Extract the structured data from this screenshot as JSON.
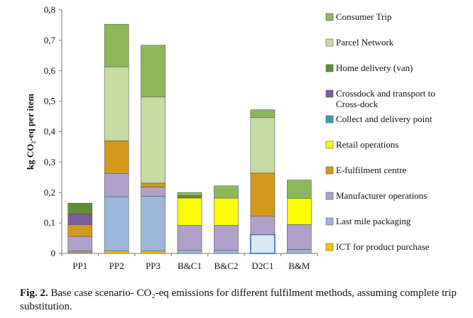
{
  "chart_data": {
    "type": "bar",
    "stacked": true,
    "ylabel": "kg CO₂-eq per item",
    "ylim": [
      0,
      0.8
    ],
    "y_ticks": [
      "0",
      "0,1",
      "0,2",
      "0,3",
      "0,4",
      "0,5",
      "0,6",
      "0,7",
      "0,8"
    ],
    "y_tick_values": [
      0,
      0.1,
      0.2,
      0.3,
      0.4,
      0.5,
      0.6,
      0.7,
      0.8
    ],
    "grid": false,
    "legend_position": "right",
    "categories": [
      "PP1",
      "PP2",
      "PP3",
      "B&C1",
      "B&C2",
      "D2C1",
      "B&M"
    ],
    "series": [
      {
        "name": "ICT for product purchase",
        "color": "#f5c400",
        "values": [
          0.003,
          0.008,
          0.008,
          0.0,
          0.0,
          0.0,
          0.0
        ]
      },
      {
        "name": "Last mile packaging",
        "color": "#9bb7db",
        "values": [
          0.005,
          0.178,
          0.18,
          0.01,
          0.01,
          0.062,
          0.013
        ]
      },
      {
        "name": "Manufacturer operations",
        "color": "#b1a0c9",
        "values": [
          0.048,
          0.077,
          0.03,
          0.082,
          0.082,
          0.06,
          0.082
        ]
      },
      {
        "name": "E-fulfilment centre",
        "color": "#d39a1a",
        "values": [
          0.038,
          0.107,
          0.013,
          0.0,
          0.0,
          0.142,
          0.0
        ]
      },
      {
        "name": "Retail operations",
        "color": "#ffff00",
        "values": [
          0.0,
          0.0,
          0.0,
          0.09,
          0.09,
          0.0,
          0.086
        ]
      },
      {
        "name": "Collect and delivery point",
        "color": "#3c9bbf",
        "values": [
          0.0,
          0.0,
          0.0,
          0.0,
          0.0,
          0.0,
          0.0
        ]
      },
      {
        "name": "Crossdock and transport to Cross-dock",
        "color": "#7a5c9c",
        "values": [
          0.036,
          0.0,
          0.0,
          0.0,
          0.0,
          0.0,
          0.0
        ]
      },
      {
        "name": "Home delivery (van)",
        "color": "#5f8f32",
        "values": [
          0.035,
          0.0,
          0.0,
          0.008,
          0.0,
          0.0,
          0.0
        ]
      },
      {
        "name": "Parcel Network",
        "color": "#c6dca3",
        "values": [
          0.0,
          0.243,
          0.283,
          0.0,
          0.0,
          0.183,
          0.0
        ]
      },
      {
        "name": "Consumer Trip",
        "color": "#8db85a",
        "values": [
          0.0,
          0.14,
          0.17,
          0.01,
          0.04,
          0.025,
          0.06
        ]
      }
    ],
    "legend_order": [
      {
        "lines": [
          "Consumer Trip"
        ],
        "color": "#8db85a"
      },
      {
        "lines": [
          "Parcel Network"
        ],
        "color": "#c6dca3"
      },
      {
        "lines": [
          "Home delivery (van)"
        ],
        "color": "#5f8f32"
      },
      {
        "lines": [
          "Crossdock and transport to",
          "Cross-dock"
        ],
        "color": "#7a5c9c"
      },
      {
        "lines": [
          "Collect and delivery point"
        ],
        "color": "#3c9bbf"
      },
      {
        "lines": [
          "Retail operations"
        ],
        "color": "#ffff00"
      },
      {
        "lines": [
          "E-fulfilment centre"
        ],
        "color": "#d39a1a"
      },
      {
        "lines": [
          "Manufacturer operations"
        ],
        "color": "#b1a0c9"
      },
      {
        "lines": [
          "Last mile packaging"
        ],
        "color": "#9bb7db"
      },
      {
        "lines": [
          "ICT for product purchase"
        ],
        "color": "#f5c400"
      }
    ],
    "highlight": {
      "category": "D2C1",
      "series": "Last mile packaging",
      "fill": "#dce9f5",
      "stroke": "#3f7fc1"
    }
  },
  "caption": {
    "label": "Fig. 2.",
    "text": "Base case scenario- CO₂-eq emissions for different fulfilment methods, assuming complete trip substitution."
  }
}
